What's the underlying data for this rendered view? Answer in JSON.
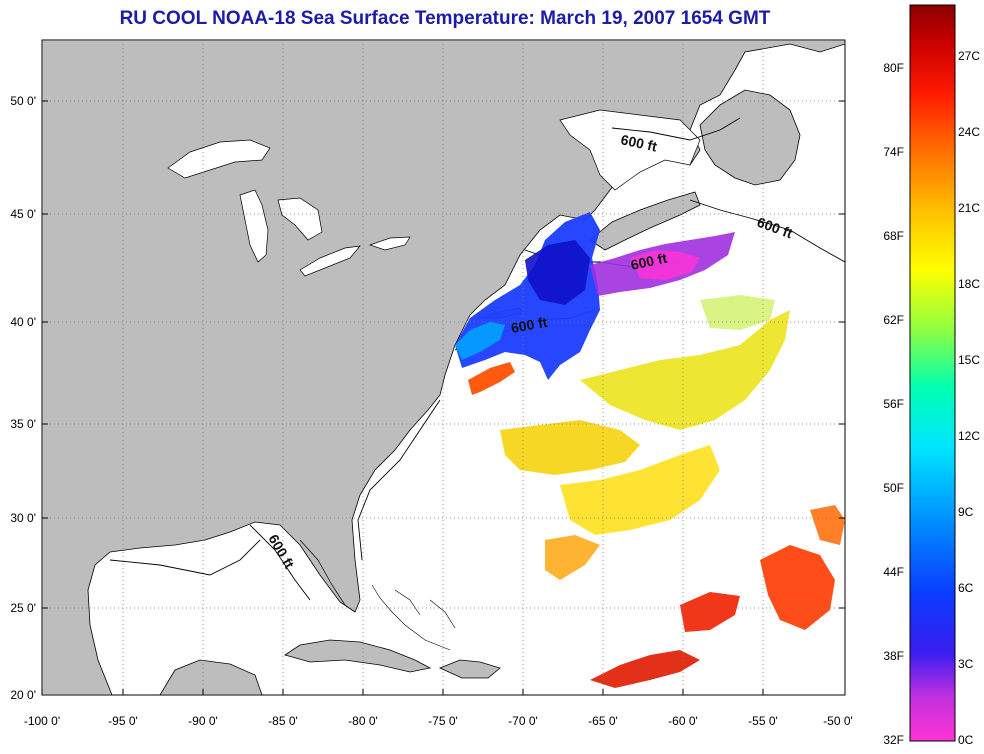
{
  "title": "RU COOL  NOAA-18  Sea Surface Temperature:  March 19, 2007 1654 GMT",
  "colors": {
    "title": "#1c1ca8",
    "land": "#bdbdbd",
    "ocean": "#ffffff",
    "grid": "#7a7a7a"
  },
  "axes": {
    "lon_labels": [
      "-100 0'",
      "-95 0'",
      "-90 0'",
      "-85 0'",
      "-80 0'",
      "-75 0'",
      "-70 0'",
      "-65 0'",
      "-60 0'",
      "-55 0'",
      "-50 0'"
    ],
    "lat_labels": [
      "50 0'",
      "45 0'",
      "40 0'",
      "35 0'",
      "30 0'",
      "25 0'",
      "20 0'"
    ]
  },
  "bathymetry_labels": [
    "600 ft",
    "600 ft",
    "600 ft",
    "600 ft",
    "600 ft"
  ],
  "colorbar": {
    "fahrenheit_labels": [
      "80F",
      "74F",
      "68F",
      "62F",
      "56F",
      "50F",
      "44F",
      "38F",
      "32F"
    ],
    "celsius_labels": [
      "27C",
      "24C",
      "21C",
      "18C",
      "15C",
      "12C",
      "9C",
      "6C",
      "3C",
      "0C"
    ],
    "stops": [
      "#ff33d6",
      "#9a35d8",
      "#1414ff",
      "#0a64ff",
      "#00c8ff",
      "#00ffd2",
      "#5cff7a",
      "#d8ff1e",
      "#ffff00",
      "#ffcc00",
      "#ff7f00",
      "#ff2000",
      "#d80000",
      "#8b0000"
    ]
  }
}
